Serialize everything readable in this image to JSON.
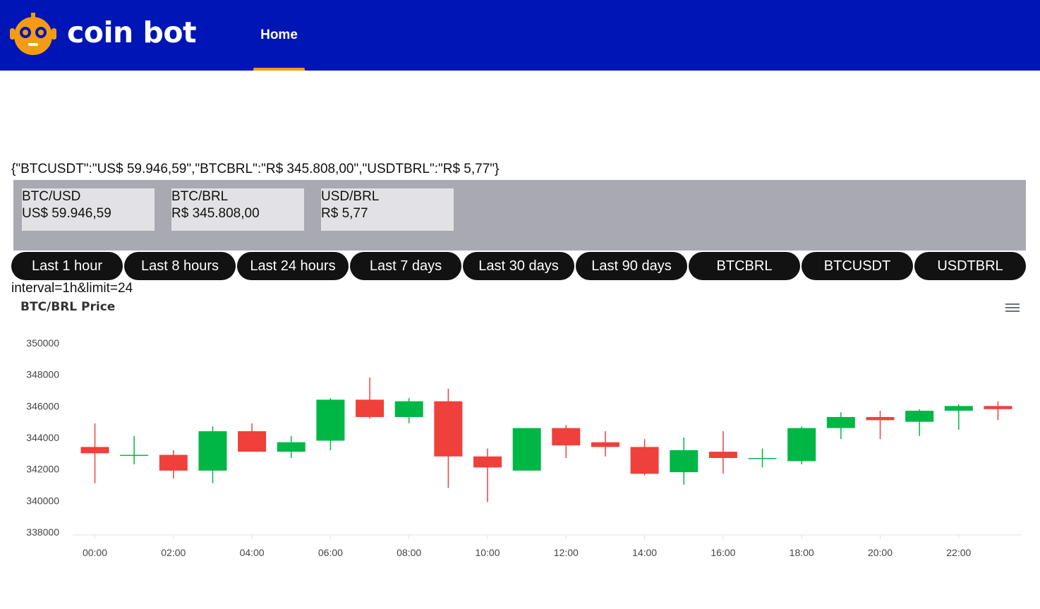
{
  "header": {
    "brand": "coin bot",
    "nav_home": "Home",
    "logo_icon": "robot-face-icon",
    "accent": "#f39c12",
    "background": "#0015b5"
  },
  "raw_json_text": "{\"BTCUSDT\":\"US$ 59.946,59\",\"BTCBRL\":\"R$ 345.808,00\",\"USDTBRL\":\"R$ 5,77\"}",
  "tickers": [
    {
      "pair": "BTC/USD",
      "price": "US$ 59.946,59"
    },
    {
      "pair": "BTC/BRL",
      "price": "R$ 345.808,00"
    },
    {
      "pair": "USD/BRL",
      "price": "R$ 5,77"
    }
  ],
  "buttons": [
    "Last 1 hour",
    "Last 8 hours",
    "Last 24 hours",
    "Last 7 days",
    "Last 30 days",
    "Last 90 days",
    "BTCBRL",
    "BTCUSDT",
    "USDTBRL"
  ],
  "query_text": "interval=1h&limit=24",
  "chart_data": {
    "type": "candlestick",
    "title": "BTC/BRL Price",
    "xlabel": "",
    "ylabel": "",
    "ylim": [
      338000,
      350000
    ],
    "y_ticks": [
      338000,
      340000,
      342000,
      344000,
      346000,
      348000,
      350000
    ],
    "x_ticks": [
      "00:00",
      "02:00",
      "04:00",
      "06:00",
      "08:00",
      "10:00",
      "12:00",
      "14:00",
      "16:00",
      "18:00",
      "20:00",
      "22:00"
    ],
    "up_color": "#00b746",
    "down_color": "#ef403c",
    "grid": false,
    "candles": [
      {
        "hour": 0,
        "open": 343400,
        "high": 344900,
        "low": 341100,
        "close": 343000
      },
      {
        "hour": 1,
        "open": 342900,
        "high": 344100,
        "low": 342300,
        "close": 342900
      },
      {
        "hour": 2,
        "open": 342900,
        "high": 343200,
        "low": 341400,
        "close": 341900
      },
      {
        "hour": 3,
        "open": 341900,
        "high": 344700,
        "low": 341100,
        "close": 344400
      },
      {
        "hour": 4,
        "open": 344400,
        "high": 344900,
        "low": 343100,
        "close": 343100
      },
      {
        "hour": 5,
        "open": 343100,
        "high": 344100,
        "low": 342700,
        "close": 343700
      },
      {
        "hour": 6,
        "open": 343800,
        "high": 346500,
        "low": 343200,
        "close": 346400
      },
      {
        "hour": 7,
        "open": 346400,
        "high": 347800,
        "low": 345200,
        "close": 345300
      },
      {
        "hour": 8,
        "open": 345300,
        "high": 346500,
        "low": 344900,
        "close": 346300
      },
      {
        "hour": 9,
        "open": 346300,
        "high": 347100,
        "low": 340800,
        "close": 342800
      },
      {
        "hour": 10,
        "open": 342800,
        "high": 343300,
        "low": 339900,
        "close": 342100
      },
      {
        "hour": 11,
        "open": 341900,
        "high": 344600,
        "low": 341900,
        "close": 344600
      },
      {
        "hour": 12,
        "open": 344600,
        "high": 344800,
        "low": 342700,
        "close": 343500
      },
      {
        "hour": 13,
        "open": 343700,
        "high": 344400,
        "low": 342800,
        "close": 343400
      },
      {
        "hour": 14,
        "open": 343400,
        "high": 343900,
        "low": 341600,
        "close": 341700
      },
      {
        "hour": 15,
        "open": 341800,
        "high": 344000,
        "low": 341000,
        "close": 343200
      },
      {
        "hour": 16,
        "open": 343100,
        "high": 344400,
        "low": 341700,
        "close": 342700
      },
      {
        "hour": 17,
        "open": 342700,
        "high": 343300,
        "low": 342100,
        "close": 342700
      },
      {
        "hour": 18,
        "open": 342500,
        "high": 344700,
        "low": 342300,
        "close": 344600
      },
      {
        "hour": 19,
        "open": 344600,
        "high": 345600,
        "low": 343900,
        "close": 345300
      },
      {
        "hour": 20,
        "open": 345300,
        "high": 345700,
        "low": 343900,
        "close": 345100
      },
      {
        "hour": 21,
        "open": 345000,
        "high": 345800,
        "low": 344100,
        "close": 345700
      },
      {
        "hour": 22,
        "open": 345700,
        "high": 346100,
        "low": 344500,
        "close": 346000
      },
      {
        "hour": 23,
        "open": 346000,
        "high": 346300,
        "low": 345100,
        "close": 345800
      }
    ]
  }
}
